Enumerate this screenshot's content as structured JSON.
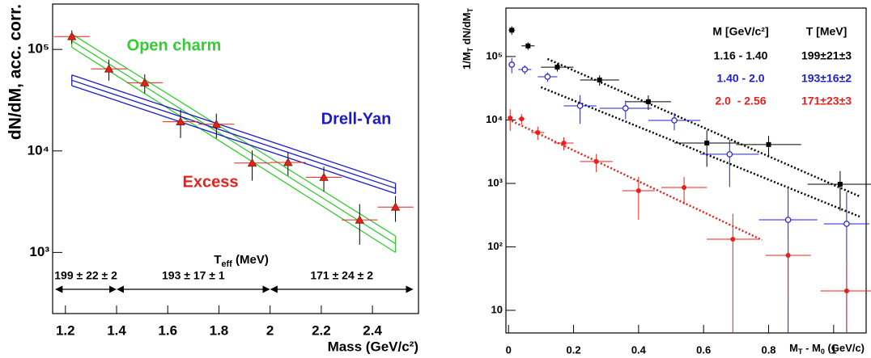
{
  "chart_data": [
    {
      "type": "scatter",
      "y_label": "dN/dM, acc. corr.",
      "x_label": "Mass (GeV/c²)",
      "log_y": true,
      "xlim": [
        1.15,
        2.58
      ],
      "xticks": [
        1.2,
        1.4,
        1.6,
        1.8,
        2,
        2.2,
        2.4
      ],
      "ylim": [
        250,
        280000
      ],
      "yticks": [
        {
          "value": 1000,
          "label": "10³"
        },
        {
          "value": 10000,
          "label": "10⁴"
        },
        {
          "value": 100000,
          "label": "10⁵"
        }
      ],
      "series": [
        {
          "name": "Excess",
          "color": "#e8201c",
          "marker": "triangle",
          "x": [
            1.225,
            1.37,
            1.51,
            1.65,
            1.79,
            1.93,
            2.07,
            2.21,
            2.35,
            2.49
          ],
          "xerr": [
            0.07,
            0.07,
            0.07,
            0.07,
            0.07,
            0.07,
            0.07,
            0.07,
            0.07,
            0.07
          ],
          "values": [
            134000,
            64300,
            47000,
            19400,
            18300,
            7600,
            7700,
            5500,
            2090,
            2800
          ],
          "yerr": [
            20000,
            15000,
            10000,
            6000,
            5000,
            2500,
            2000,
            1500,
            900,
            800
          ]
        }
      ],
      "bands": [
        {
          "name": "Open charm",
          "color": "#33cc33",
          "x": [
            1.225,
            2.49
          ],
          "lower": [
            105000,
            1000
          ],
          "values": [
            122000,
            1220
          ],
          "upper": [
            142000,
            1450
          ]
        },
        {
          "name": "Drell-Yan",
          "color": "#1a1acc",
          "x": [
            1.225,
            2.49
          ],
          "lower": [
            44000,
            3800
          ],
          "values": [
            49700,
            4290
          ],
          "upper": [
            56000,
            4800
          ]
        }
      ],
      "teff_label": {
        "main": "T",
        "sub": "eff",
        "rest": " (MeV)"
      },
      "ranges": [
        {
          "label": "199 ± 22 ± 2",
          "x": [
            1.16,
            1.4
          ]
        },
        {
          "label": "193 ± 17 ± 1",
          "x": [
            1.4,
            2.0
          ]
        },
        {
          "label": "171 ± 24 ± 2",
          "x": [
            2.0,
            2.56
          ]
        }
      ]
    },
    {
      "type": "scatter",
      "y_label": [
        "1/M",
        "T",
        " dN/dM",
        "T"
      ],
      "x_label": [
        "M",
        "T",
        " - M",
        "0",
        " (GeV/c)"
      ],
      "log_y": true,
      "xlim": [
        -0.008,
        1.1
      ],
      "xticks": [
        0,
        0.2,
        0.4,
        0.6,
        0.8,
        1
      ],
      "ylim": [
        4.4,
        580000
      ],
      "yticks": [
        10,
        {
          "value": 100,
          "label": "10²"
        },
        {
          "value": 1000,
          "label": "10³"
        },
        {
          "value": 10000,
          "label": "10⁴"
        },
        {
          "value": 100000,
          "label": "10⁵"
        }
      ],
      "legend_headers": [
        "M [GeV/c²]",
        "T [MeV]"
      ],
      "series": [
        {
          "name": "1.16 - 1.40",
          "temperature": "199±21±3",
          "color": "#000000",
          "marker": "square",
          "x": [
            0.01,
            0.06,
            0.15,
            0.28,
            0.43,
            0.61,
            0.8,
            1.02
          ],
          "xerr": [
            0.01,
            0.02,
            0.05,
            0.06,
            0.07,
            0.1,
            0.1,
            0.1
          ],
          "values": [
            260000,
            147000,
            68000,
            42700,
            19400,
            4330,
            4100,
            970
          ],
          "yerr": [
            40000,
            20000,
            10000,
            8000,
            5000,
            2500,
            1500,
            600
          ]
        },
        {
          "name": "1.40 - 2.0",
          "temperature": "193±16±2",
          "color": "#2020d0",
          "marker": "open-circle",
          "x": [
            0.01,
            0.05,
            0.12,
            0.22,
            0.36,
            0.51,
            0.68,
            0.86,
            1.04
          ],
          "xerr": [
            0.01,
            0.02,
            0.03,
            0.05,
            0.08,
            0.08,
            0.09,
            0.09,
            0.07
          ],
          "values": [
            74600,
            62500,
            48000,
            16700,
            15300,
            9860,
            2880,
            267,
            231
          ],
          "yerr": [
            20000,
            10000,
            8000,
            8000,
            5000,
            3000,
            2000,
            600,
            500
          ]
        },
        {
          "name": "2.0  - 2.56",
          "temperature": "171±23±3",
          "color": "#e8201c",
          "marker": "circle",
          "x": [
            0.005,
            0.04,
            0.09,
            0.17,
            0.27,
            0.4,
            0.54,
            0.69,
            0.86,
            1.04
          ],
          "xerr": [
            0.005,
            0.01,
            0.02,
            0.03,
            0.05,
            0.05,
            0.07,
            0.08,
            0.07,
            0.08
          ],
          "values": [
            10760,
            10400,
            6350,
            4330,
            2210,
            768,
            864,
            132,
            73.5,
            20.2
          ],
          "yerr": [
            4000,
            2000,
            1500,
            1000,
            700,
            500,
            400,
            200,
            60,
            40
          ]
        }
      ],
      "fits": [
        {
          "color": "#000000",
          "x": [
            0.12,
            1.08
          ],
          "values": [
            91600,
            625
          ]
        },
        {
          "color": "#000000",
          "x": [
            0.1,
            1.08
          ],
          "values": [
            32800,
            300
          ]
        },
        {
          "color": "#e8201c",
          "x": [
            0.0,
            0.78
          ],
          "values": [
            10200,
            128
          ]
        }
      ]
    }
  ]
}
